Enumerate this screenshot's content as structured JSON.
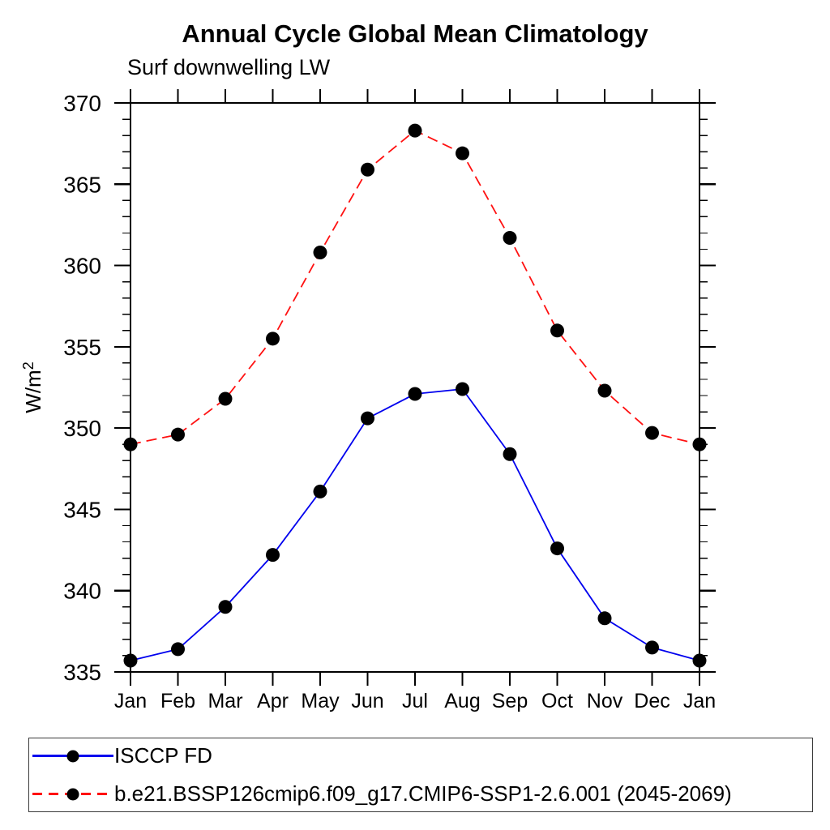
{
  "header": {
    "title": "Annual Cycle Global Mean Climatology",
    "subtitle": "Surf downwelling LW"
  },
  "chart_data": {
    "type": "line",
    "title": "Annual Cycle Global Mean Climatology",
    "subtitle": "Surf downwelling LW",
    "ylabel_base": "W/m",
    "ylabel_exp": "2",
    "xlabel": "",
    "x_categories": [
      "Jan",
      "Feb",
      "Mar",
      "Apr",
      "May",
      "Jun",
      "Jul",
      "Aug",
      "Sep",
      "Oct",
      "Nov",
      "Dec",
      "Jan"
    ],
    "ylim": [
      335,
      370
    ],
    "ytick_major_step": 5,
    "ytick_minor_step": 1,
    "ytick_labels": [
      "335",
      "340",
      "345",
      "350",
      "355",
      "360",
      "365",
      "370"
    ],
    "grid": false,
    "legend_position": "bottom box, outside plot",
    "marker_color": "#000000",
    "series": [
      {
        "name": "ISCCP FD",
        "color": "#0000ee",
        "style": "solid",
        "marker": "circle",
        "values": [
          335.7,
          336.4,
          339.0,
          342.2,
          346.1,
          350.6,
          352.1,
          352.4,
          348.4,
          342.6,
          338.3,
          336.5,
          335.7
        ]
      },
      {
        "name": "b.e21.BSSP126cmip6.f09_g17.CMIP6-SSP1-2.6.001 (2045-2069)",
        "color": "#ff1111",
        "style": "dashed",
        "marker": "circle",
        "values": [
          349.0,
          349.6,
          351.8,
          355.5,
          360.8,
          365.9,
          368.3,
          366.9,
          361.7,
          356.0,
          352.3,
          349.7,
          349.0
        ]
      }
    ]
  }
}
